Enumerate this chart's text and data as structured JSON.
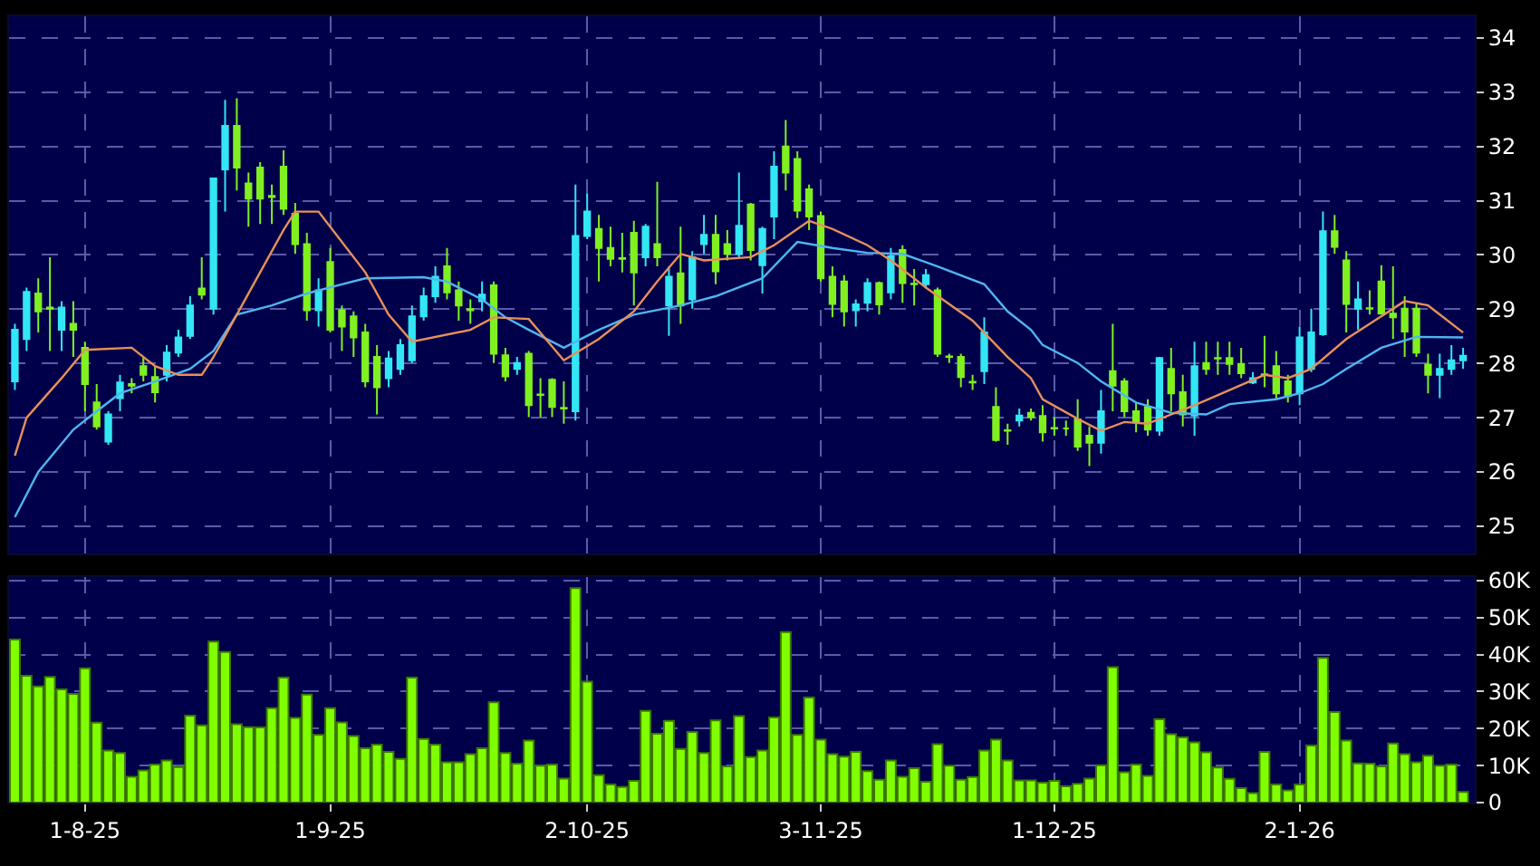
{
  "chart_data": [
    {
      "type": "candlestick",
      "tick_labels": "y",
      "grid": true,
      "categories": [
        null,
        null,
        null,
        null,
        null,
        null,
        null,
        null,
        null,
        null,
        null,
        null,
        null,
        null,
        null,
        null,
        null,
        null,
        null,
        null,
        null,
        null,
        null,
        null,
        null,
        null,
        null,
        null,
        null,
        null,
        null,
        null,
        null,
        null,
        null,
        null,
        null,
        null,
        null,
        null,
        null,
        null,
        null,
        null,
        null,
        null,
        null,
        null,
        null,
        null,
        null,
        null,
        null,
        null,
        null,
        null,
        null,
        null,
        null,
        null,
        null,
        null,
        null,
        null,
        null,
        null,
        null,
        null,
        null,
        null,
        null,
        null,
        null,
        null,
        null,
        null,
        null,
        null,
        null,
        null,
        null,
        null,
        null,
        null,
        null,
        null,
        null,
        null,
        null,
        null,
        null,
        null,
        null,
        null,
        null,
        null,
        null,
        null,
        null,
        null,
        null,
        null,
        null,
        null,
        null,
        null,
        null,
        null,
        null,
        null,
        null,
        null,
        null,
        null,
        null,
        null,
        null,
        null,
        null,
        null,
        null,
        null,
        null,
        null,
        null
      ],
      "ylim": [
        24.5,
        34.4
      ],
      "yticks": [
        25,
        26,
        27,
        28,
        29,
        30,
        31,
        32,
        33,
        34
      ],
      "series": [
        {
          "type": "line",
          "color": "#4fb6f0",
          "values": [
            25.17,
            null,
            26.0,
            null,
            null,
            26.78,
            null,
            27.12,
            null,
            27.45,
            null,
            null,
            27.67,
            null,
            null,
            27.9,
            null,
            28.23,
            null,
            28.9,
            null,
            null,
            29.07,
            null,
            null,
            29.29,
            null,
            null,
            29.46,
            null,
            29.57,
            null,
            null,
            null,
            null,
            29.59,
            null,
            29.51,
            null,
            null,
            29.18,
            null,
            28.85,
            null,
            28.62,
            null,
            null,
            28.29,
            null,
            null,
            28.62,
            null,
            null,
            28.9,
            null,
            null,
            null,
            29.07,
            null,
            null,
            29.24,
            null,
            null,
            null,
            29.57,
            null,
            null,
            30.24,
            null,
            null,
            30.13,
            null,
            null,
            30.04,
            null,
            null,
            30.02,
            null,
            null,
            29.79,
            null,
            null,
            null,
            29.46,
            null,
            28.96,
            null,
            28.62,
            28.34,
            null,
            null,
            28.01,
            null,
            27.67,
            null,
            null,
            27.28,
            null,
            null,
            27.09,
            null,
            null,
            27.06,
            null,
            27.25,
            null,
            null,
            null,
            27.34,
            null,
            27.45,
            null,
            27.62,
            null,
            27.9,
            null,
            null,
            28.29,
            null,
            null,
            28.49,
            null,
            null,
            null,
            28.48
          ]
        },
        {
          "type": "line",
          "color": "#e8905a",
          "values": [
            26.3,
            27.0,
            null,
            null,
            27.73,
            null,
            28.25,
            null,
            null,
            null,
            28.29,
            null,
            27.95,
            null,
            27.79,
            null,
            27.79,
            28.12,
            null,
            28.9,
            null,
            29.68,
            null,
            30.46,
            30.8,
            null,
            30.8,
            null,
            null,
            null,
            29.68,
            null,
            28.9,
            null,
            28.4,
            null,
            null,
            null,
            null,
            28.62,
            null,
            28.85,
            null,
            null,
            28.82,
            null,
            null,
            28.06,
            null,
            null,
            28.45,
            null,
            null,
            28.96,
            null,
            29.51,
            null,
            30.02,
            null,
            29.9,
            null,
            null,
            null,
            29.96,
            null,
            30.18,
            null,
            null,
            30.63,
            null,
            30.48,
            null,
            null,
            30.18,
            null,
            29.9,
            null,
            null,
            29.4,
            null,
            null,
            null,
            28.79,
            null,
            null,
            28.12,
            null,
            27.73,
            27.34,
            null,
            null,
            26.98,
            null,
            26.76,
            null,
            26.92,
            null,
            26.89,
            null,
            null,
            null,
            27.23,
            null,
            null,
            27.51,
            null,
            null,
            27.79,
            null,
            27.73,
            null,
            27.9,
            null,
            null,
            28.45,
            null,
            28.73,
            null,
            null,
            29.15,
            null,
            29.07,
            null,
            null,
            28.57
          ]
        },
        {
          "type": "candlestick",
          "colors": [
            "#33e6f5",
            "#33e6f5",
            "#80f020",
            "#80f020",
            "#33e6f5",
            "#80f020",
            "#80f020",
            "#80f020",
            "#33e6f5",
            "#33e6f5",
            "#80f020",
            "#80f020",
            "#80f020",
            "#33e6f5",
            "#33e6f5",
            "#33e6f5",
            "#80f020",
            "#33e6f5",
            "#33e6f5",
            "#80f020",
            "#80f020",
            "#80f020",
            "#80f020",
            "#80f020",
            "#80f020",
            "#80f020",
            "#33e6f5",
            "#80f020",
            "#80f020",
            "#80f020",
            "#80f020",
            "#80f020",
            "#33e6f5",
            "#33e6f5",
            "#33e6f5",
            "#33e6f5",
            "#33e6f5",
            "#80f020",
            "#80f020",
            "#80f020",
            "#33e6f5",
            "#80f020",
            "#80f020",
            "#33e6f5",
            "#80f020",
            "#80f020",
            "#80f020",
            "#80f020",
            "#33e6f5",
            "#33e6f5",
            "#80f020",
            "#80f020",
            "#80f020",
            "#80f020",
            "#33e6f5",
            "#80f020",
            "#33e6f5",
            "#80f020",
            "#33e6f5",
            "#33e6f5",
            "#80f020",
            "#80f020",
            "#33e6f5",
            "#80f020",
            "#33e6f5",
            "#33e6f5",
            "#80f020",
            "#80f020",
            "#80f020",
            "#80f020",
            "#80f020",
            "#80f020",
            "#33e6f5",
            "#33e6f5",
            "#80f020",
            "#33e6f5",
            "#80f020",
            "#80f020",
            "#33e6f5",
            "#80f020",
            "#80f020",
            "#80f020",
            "#80f020",
            "#33e6f5",
            "#80f020",
            "#80f020",
            "#33e6f5",
            "#80f020",
            "#80f020",
            "#80f020",
            "#80f020",
            "#80f020",
            "#80f020",
            "#33e6f5",
            "#80f020",
            "#80f020",
            "#80f020",
            "#80f020",
            "#33e6f5",
            "#80f020",
            "#80f020",
            "#33e6f5",
            "#80f020",
            "#80f020",
            "#80f020",
            "#80f020",
            "#33e6f5",
            "#80f020",
            "#80f020",
            "#80f020",
            "#33e6f5",
            "#33e6f5",
            "#33e6f5",
            "#80f020",
            "#80f020",
            "#33e6f5",
            "#80f020",
            "#80f020",
            "#80f020",
            "#80f020",
            "#80f020",
            "#80f020",
            "#33e6f5",
            "#33e6f5",
            "#33e6f5"
          ],
          "ohlc": [
            [
              27.67,
              28.73,
              27.51,
              28.62
            ],
            [
              28.45,
              29.4,
              28.23,
              29.32
            ],
            [
              29.29,
              29.57,
              28.57,
              28.96
            ],
            [
              29.03,
              29.96,
              28.23,
              29.01
            ],
            [
              28.62,
              29.15,
              28.23,
              29.03
            ],
            [
              28.73,
              29.15,
              28.12,
              28.62
            ],
            [
              28.29,
              28.4,
              27.12,
              27.62
            ],
            [
              27.28,
              27.62,
              26.78,
              26.84
            ],
            [
              26.56,
              27.12,
              26.5,
              27.06
            ],
            [
              27.36,
              27.79,
              27.12,
              27.65
            ],
            [
              27.62,
              27.73,
              27.45,
              27.59
            ],
            [
              27.95,
              28.12,
              27.67,
              27.79
            ],
            [
              27.75,
              27.95,
              27.28,
              27.47
            ],
            [
              27.79,
              28.34,
              27.67,
              28.2
            ],
            [
              28.2,
              28.62,
              28.12,
              28.48
            ],
            [
              28.51,
              29.24,
              28.45,
              29.07
            ],
            [
              29.38,
              29.96,
              29.18,
              29.27
            ],
            [
              29.01,
              31.41,
              28.9,
              31.41
            ],
            [
              31.58,
              32.86,
              30.8,
              32.38
            ],
            [
              32.38,
              32.89,
              31.19,
              31.61
            ],
            [
              31.32,
              31.52,
              30.52,
              31.04
            ],
            [
              31.61,
              31.71,
              30.57,
              31.04
            ],
            [
              31.09,
              31.3,
              30.57,
              31.07
            ],
            [
              31.63,
              31.93,
              30.74,
              30.85
            ],
            [
              30.76,
              30.96,
              30.02,
              30.2
            ],
            [
              30.2,
              30.41,
              28.79,
              28.98
            ],
            [
              28.98,
              29.57,
              28.68,
              29.35
            ],
            [
              29.87,
              30.13,
              28.57,
              28.62
            ],
            [
              28.98,
              29.07,
              28.23,
              28.68
            ],
            [
              28.87,
              28.96,
              28.12,
              28.48
            ],
            [
              28.57,
              28.73,
              27.56,
              27.67
            ],
            [
              28.12,
              28.34,
              27.06,
              27.56
            ],
            [
              27.73,
              28.23,
              27.56,
              28.09
            ],
            [
              27.9,
              28.45,
              27.79,
              28.34
            ],
            [
              28.06,
              29.07,
              28.01,
              28.87
            ],
            [
              28.87,
              29.4,
              28.79,
              29.24
            ],
            [
              29.24,
              29.79,
              29.12,
              29.6
            ],
            [
              29.79,
              30.13,
              29.18,
              29.31
            ],
            [
              29.35,
              29.51,
              28.79,
              29.07
            ],
            [
              29.0,
              29.18,
              28.73,
              28.98
            ],
            [
              29.15,
              29.51,
              28.96,
              29.27
            ],
            [
              29.44,
              29.51,
              28.01,
              28.18
            ],
            [
              28.15,
              28.29,
              27.67,
              27.76
            ],
            [
              27.9,
              28.12,
              27.79,
              28.01
            ],
            [
              28.18,
              28.23,
              27.01,
              27.23
            ],
            [
              27.43,
              27.73,
              27.01,
              27.42
            ],
            [
              27.7,
              27.73,
              27.01,
              27.2
            ],
            [
              27.18,
              27.67,
              26.89,
              27.17
            ],
            [
              27.12,
              31.3,
              26.95,
              30.35
            ],
            [
              30.35,
              31.13,
              30.29,
              30.8
            ],
            [
              30.48,
              30.74,
              29.51,
              30.13
            ],
            [
              30.13,
              30.52,
              29.79,
              29.93
            ],
            [
              29.94,
              30.41,
              29.68,
              29.93
            ],
            [
              30.41,
              30.63,
              29.07,
              29.68
            ],
            [
              29.96,
              30.57,
              29.79,
              30.52
            ],
            [
              30.2,
              31.35,
              29.79,
              29.96
            ],
            [
              29.07,
              29.79,
              28.51,
              29.6
            ],
            [
              29.66,
              30.52,
              28.73,
              29.07
            ],
            [
              29.18,
              30.07,
              29.01,
              29.96
            ],
            [
              30.2,
              30.74,
              30.02,
              30.37
            ],
            [
              30.37,
              30.74,
              29.46,
              29.7
            ],
            [
              30.2,
              30.46,
              29.9,
              30.02
            ],
            [
              30.02,
              31.52,
              29.96,
              30.54
            ],
            [
              30.93,
              30.96,
              29.9,
              30.09
            ],
            [
              29.81,
              30.52,
              29.29,
              30.48
            ],
            [
              30.71,
              31.91,
              30.29,
              31.63
            ],
            [
              32.0,
              32.49,
              31.19,
              31.52
            ],
            [
              31.77,
              31.91,
              30.68,
              30.82
            ],
            [
              31.21,
              31.3,
              30.46,
              30.71
            ],
            [
              30.72,
              30.8,
              29.51,
              29.57
            ],
            [
              29.6,
              29.79,
              28.85,
              29.1
            ],
            [
              29.51,
              29.63,
              28.68,
              28.96
            ],
            [
              28.98,
              29.18,
              28.68,
              29.09
            ],
            [
              29.12,
              29.57,
              28.96,
              29.48
            ],
            [
              29.48,
              29.51,
              28.9,
              29.09
            ],
            [
              29.31,
              30.13,
              29.18,
              29.98
            ],
            [
              30.09,
              30.18,
              29.12,
              29.48
            ],
            [
              29.47,
              29.74,
              29.07,
              29.46
            ],
            [
              29.46,
              29.74,
              29.4,
              29.63
            ],
            [
              29.35,
              29.4,
              28.12,
              28.18
            ],
            [
              28.13,
              28.18,
              28.01,
              28.12
            ],
            [
              28.12,
              28.18,
              27.56,
              27.75
            ],
            [
              27.66,
              27.79,
              27.51,
              27.65
            ],
            [
              27.86,
              28.85,
              27.62,
              28.57
            ],
            [
              27.2,
              27.56,
              26.56,
              26.59
            ],
            [
              26.77,
              26.89,
              26.5,
              26.76
            ],
            [
              26.95,
              27.17,
              26.84,
              27.04
            ],
            [
              27.09,
              27.17,
              26.95,
              27.01
            ],
            [
              27.03,
              27.23,
              26.56,
              26.73
            ],
            [
              26.81,
              27.01,
              26.67,
              26.8
            ],
            [
              26.8,
              26.95,
              26.67,
              26.8
            ],
            [
              26.97,
              27.34,
              26.39,
              26.47
            ],
            [
              26.67,
              26.84,
              26.11,
              26.54
            ],
            [
              26.54,
              27.51,
              26.34,
              27.12
            ],
            [
              27.86,
              28.73,
              27.12,
              27.59
            ],
            [
              27.67,
              27.73,
              27.01,
              27.12
            ],
            [
              27.12,
              27.28,
              26.73,
              26.92
            ],
            [
              27.2,
              27.34,
              26.67,
              26.78
            ],
            [
              26.76,
              28.12,
              26.67,
              28.1
            ],
            [
              27.9,
              28.29,
              27.12,
              27.45
            ],
            [
              27.47,
              27.79,
              26.84,
              27.06
            ],
            [
              27.04,
              28.4,
              26.67,
              27.95
            ],
            [
              28.01,
              28.4,
              27.79,
              27.9
            ],
            [
              28.1,
              28.4,
              27.79,
              28.09
            ],
            [
              28.1,
              28.4,
              27.79,
              27.99
            ],
            [
              27.99,
              28.29,
              27.73,
              27.82
            ],
            [
              27.65,
              27.84,
              27.62,
              27.73
            ],
            [
              27.8,
              28.51,
              27.56,
              27.79
            ],
            [
              27.95,
              28.23,
              27.34,
              27.45
            ],
            [
              27.67,
              27.79,
              27.28,
              27.4
            ],
            [
              27.45,
              28.68,
              27.23,
              28.48
            ],
            [
              27.9,
              29.01,
              27.84,
              28.57
            ],
            [
              28.54,
              30.8,
              28.51,
              30.44
            ],
            [
              30.44,
              30.74,
              30.02,
              30.15
            ],
            [
              29.9,
              30.07,
              28.57,
              29.1
            ],
            [
              29.01,
              29.51,
              28.62,
              29.18
            ],
            [
              29.02,
              29.35,
              28.9,
              29.01
            ],
            [
              29.51,
              29.81,
              28.9,
              28.92
            ],
            [
              28.92,
              29.79,
              28.45,
              28.85
            ],
            [
              29.01,
              29.24,
              28.12,
              28.59
            ],
            [
              29.01,
              29.12,
              28.12,
              28.2
            ],
            [
              27.98,
              28.18,
              27.45,
              27.79
            ],
            [
              27.79,
              28.18,
              27.36,
              27.9
            ],
            [
              27.9,
              28.34,
              27.79,
              28.06
            ],
            [
              28.06,
              28.29,
              27.9,
              28.14
            ]
          ]
        }
      ]
    },
    {
      "type": "bar",
      "grid": true,
      "color": "#80ff00",
      "categories": [
        null,
        null,
        null,
        null,
        null,
        null,
        "1-8-25",
        null,
        null,
        null,
        null,
        null,
        null,
        null,
        null,
        null,
        null,
        null,
        null,
        null,
        null,
        null,
        null,
        null,
        null,
        null,
        null,
        "1-9-25",
        null,
        null,
        null,
        null,
        null,
        null,
        null,
        null,
        null,
        null,
        null,
        null,
        null,
        null,
        null,
        null,
        null,
        null,
        null,
        null,
        null,
        "2-10-25",
        null,
        null,
        null,
        null,
        null,
        null,
        null,
        null,
        null,
        null,
        null,
        null,
        null,
        null,
        null,
        null,
        null,
        null,
        null,
        "3-11-25",
        null,
        null,
        null,
        null,
        null,
        null,
        null,
        null,
        null,
        null,
        null,
        null,
        null,
        null,
        null,
        null,
        null,
        null,
        null,
        "1-12-25",
        null,
        null,
        null,
        null,
        null,
        null,
        null,
        null,
        null,
        null,
        null,
        null,
        null,
        null,
        null,
        null,
        null,
        null,
        null,
        null,
        "2-1-26",
        null,
        null,
        null,
        null,
        null,
        null,
        null,
        null,
        null,
        null,
        null,
        null,
        null,
        null
      ],
      "ylim": [
        0,
        61000
      ],
      "yticks": [
        0,
        {
          "value": 10000,
          "label": "10K"
        },
        {
          "value": 20000,
          "label": "20K"
        },
        {
          "value": 30000,
          "label": "30K"
        },
        {
          "value": 40000,
          "label": "40K"
        },
        {
          "value": 50000,
          "label": "50K"
        },
        {
          "value": 60000,
          "label": "60K"
        }
      ],
      "values": [
        44100,
        34300,
        31400,
        34000,
        30600,
        29400,
        36300,
        21600,
        14100,
        13400,
        7000,
        8700,
        10300,
        11400,
        9600,
        23500,
        20900,
        43500,
        40700,
        21200,
        20400,
        20300,
        25500,
        33800,
        22900,
        29200,
        18300,
        25500,
        21700,
        18000,
        14700,
        15700,
        13700,
        11800,
        33800,
        17200,
        15700,
        10900,
        10900,
        13100,
        14700,
        27100,
        13400,
        10500,
        16800,
        10000,
        10300,
        6500,
        58000,
        32700,
        7400,
        4900,
        4200,
        5900,
        24800,
        18600,
        22100,
        14500,
        19100,
        13400,
        22200,
        9800,
        23400,
        12300,
        14100,
        23000,
        46100,
        18300,
        28400,
        17000,
        13100,
        12400,
        13700,
        8500,
        6200,
        11400,
        7000,
        9300,
        5600,
        15800,
        10000,
        6200,
        6900,
        14100,
        17000,
        11400,
        6000,
        6000,
        5400,
        5900,
        4400,
        5100,
        6500,
        10100,
        36600,
        8200,
        10300,
        7200,
        22500,
        18500,
        17600,
        16300,
        13600,
        9500,
        6400,
        3900,
        2600,
        13700,
        4900,
        3300,
        4900,
        15400,
        39100,
        24500,
        16800,
        10600,
        10500,
        9800,
        16000,
        13100,
        10900,
        12700,
        10000,
        10300,
        2900
      ]
    }
  ]
}
